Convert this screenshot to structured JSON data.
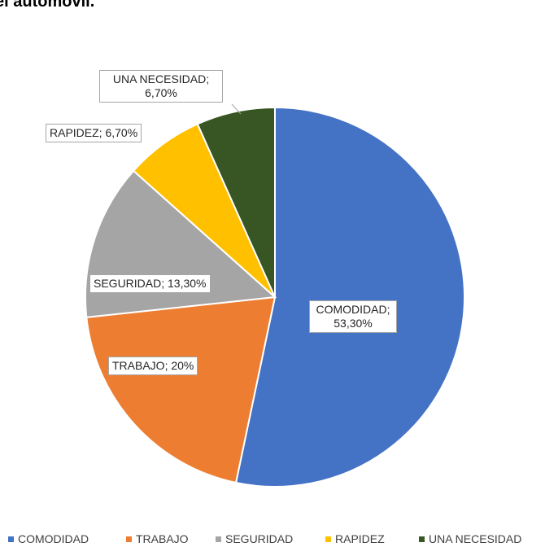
{
  "chart_data": {
    "type": "pie",
    "title": "el automóvil.",
    "categories": [
      "COMODIDAD",
      "TRABAJO",
      "SEGURIDAD",
      "RAPIDEZ",
      "UNA NECESIDAD"
    ],
    "values": [
      53.3,
      20,
      13.3,
      6.7,
      6.7
    ],
    "value_labels": [
      "COMODIDAD; 53,30%",
      "TRABAJO; 20%",
      "SEGURIDAD; 13,30%",
      "RAPIDEZ; 6,70%",
      "UNA NECESIDAD; 6,70%"
    ],
    "colors": [
      "#4472c4",
      "#ed7d31",
      "#a5a5a5",
      "#ffc000",
      "#375623"
    ],
    "legend": "bottom"
  }
}
